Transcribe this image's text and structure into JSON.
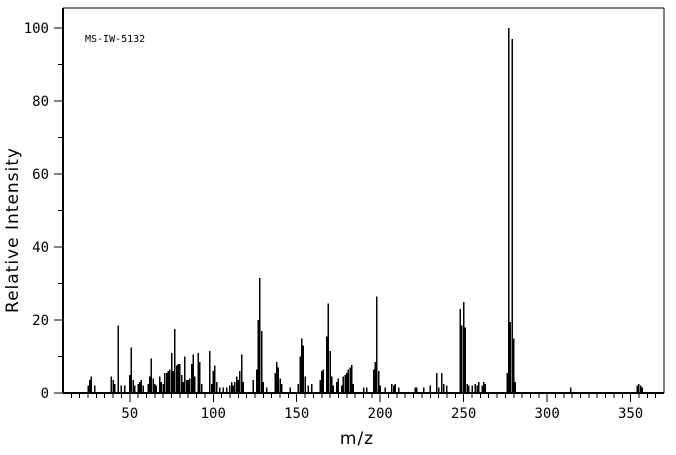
{
  "colors": {
    "background": "#ffffff",
    "foreground": "#000000"
  },
  "chart_data": {
    "type": "bar",
    "title": "",
    "annotation": "MS-IW-5132",
    "xlabel": "m/z",
    "ylabel": "Relative Intensity",
    "xlim": [
      10,
      370
    ],
    "ylim": [
      0,
      105.5
    ],
    "grid": false,
    "legend": "none",
    "x_major_ticks": [
      50,
      100,
      150,
      200,
      250,
      300,
      350
    ],
    "x_minor_step": 5,
    "y_major_ticks": [
      0,
      20,
      40,
      60,
      80,
      100
    ],
    "y_minor_step": 10,
    "peaks": [
      [
        25,
        2
      ],
      [
        26,
        3.5
      ],
      [
        27,
        4.5
      ],
      [
        29,
        2
      ],
      [
        39,
        4.5
      ],
      [
        40,
        3.5
      ],
      [
        41,
        2.5
      ],
      [
        43,
        18.5
      ],
      [
        45,
        2
      ],
      [
        47,
        2
      ],
      [
        50,
        5
      ],
      [
        51,
        12.5
      ],
      [
        52,
        3.5
      ],
      [
        53,
        2
      ],
      [
        55,
        2.5
      ],
      [
        56,
        3
      ],
      [
        57,
        3.5
      ],
      [
        58,
        2
      ],
      [
        61,
        2.5
      ],
      [
        62,
        4.5
      ],
      [
        63,
        9.5
      ],
      [
        64,
        4
      ],
      [
        65,
        2.5
      ],
      [
        66,
        2
      ],
      [
        68,
        4.5
      ],
      [
        69,
        3
      ],
      [
        70,
        2.5
      ],
      [
        71,
        5.5
      ],
      [
        72,
        5.5
      ],
      [
        73,
        6
      ],
      [
        74,
        6.5
      ],
      [
        75,
        11
      ],
      [
        76,
        6
      ],
      [
        77,
        17.5
      ],
      [
        78,
        7.5
      ],
      [
        79,
        8
      ],
      [
        80,
        8
      ],
      [
        81,
        5
      ],
      [
        82,
        3
      ],
      [
        83,
        10
      ],
      [
        84,
        3.5
      ],
      [
        85,
        3.5
      ],
      [
        86,
        4
      ],
      [
        87,
        8
      ],
      [
        88,
        10.5
      ],
      [
        89,
        4.5
      ],
      [
        91,
        11
      ],
      [
        92,
        8.5
      ],
      [
        93,
        2.5
      ],
      [
        98,
        11.5
      ],
      [
        99,
        2.5
      ],
      [
        100,
        6
      ],
      [
        101,
        7.5
      ],
      [
        102,
        3
      ],
      [
        104,
        1.5
      ],
      [
        106,
        1.5
      ],
      [
        108,
        1.5
      ],
      [
        110,
        2
      ],
      [
        111,
        3
      ],
      [
        112,
        2
      ],
      [
        113,
        3
      ],
      [
        114,
        4.5
      ],
      [
        115,
        3.5
      ],
      [
        116,
        6
      ],
      [
        117,
        10.5
      ],
      [
        118,
        3
      ],
      [
        124,
        3.5
      ],
      [
        126,
        6.5
      ],
      [
        127,
        20
      ],
      [
        128,
        31.5
      ],
      [
        129,
        17
      ],
      [
        130,
        3
      ],
      [
        132,
        1.5
      ],
      [
        137,
        5.5
      ],
      [
        138,
        8.5
      ],
      [
        139,
        7
      ],
      [
        140,
        4
      ],
      [
        141,
        2.5
      ],
      [
        146,
        1.5
      ],
      [
        151,
        2.5
      ],
      [
        152,
        10
      ],
      [
        153,
        15
      ],
      [
        154,
        13
      ],
      [
        155,
        4.5
      ],
      [
        157,
        2
      ],
      [
        159,
        2.5
      ],
      [
        164,
        3.5
      ],
      [
        165,
        6
      ],
      [
        166,
        6.5
      ],
      [
        168,
        15.5
      ],
      [
        169,
        24.5
      ],
      [
        170,
        11.5
      ],
      [
        171,
        4.5
      ],
      [
        172,
        2
      ],
      [
        174,
        3
      ],
      [
        175,
        4
      ],
      [
        177,
        2
      ],
      [
        178,
        4.5
      ],
      [
        179,
        5
      ],
      [
        180,
        5.5
      ],
      [
        181,
        6.5
      ],
      [
        182,
        7
      ],
      [
        183,
        7.7
      ],
      [
        184,
        2.5
      ],
      [
        190,
        1.5
      ],
      [
        192,
        1.5
      ],
      [
        196,
        6.5
      ],
      [
        197,
        8.5
      ],
      [
        198,
        26.5
      ],
      [
        199,
        6
      ],
      [
        200,
        2
      ],
      [
        203,
        1.5
      ],
      [
        207,
        2.5
      ],
      [
        208,
        2
      ],
      [
        209,
        2.5
      ],
      [
        211,
        1.5
      ],
      [
        221,
        1.5
      ],
      [
        222,
        1.5
      ],
      [
        226,
        1.5
      ],
      [
        230,
        2
      ],
      [
        234,
        5.5
      ],
      [
        235,
        1.5
      ],
      [
        237,
        5.5
      ],
      [
        238,
        2.5
      ],
      [
        240,
        2
      ],
      [
        248,
        23
      ],
      [
        249,
        18.5
      ],
      [
        250,
        25
      ],
      [
        251,
        18
      ],
      [
        252,
        2.5
      ],
      [
        253,
        2
      ],
      [
        255,
        2
      ],
      [
        257,
        2.5
      ],
      [
        258,
        2
      ],
      [
        259,
        3
      ],
      [
        261,
        2
      ],
      [
        262,
        3
      ],
      [
        263,
        2.5
      ],
      [
        276,
        5.5
      ],
      [
        277,
        100
      ],
      [
        278,
        19.5
      ],
      [
        279,
        97
      ],
      [
        280,
        15
      ],
      [
        281,
        3
      ],
      [
        314,
        1.5
      ],
      [
        354,
        2
      ],
      [
        355,
        2.5
      ],
      [
        356,
        2
      ],
      [
        357,
        1.5
      ]
    ]
  }
}
